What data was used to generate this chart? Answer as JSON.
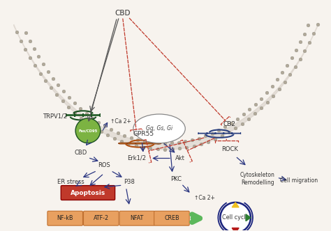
{
  "bg_color": "#f7f3ee",
  "arrow_dark": "#2a3580",
  "arrow_red": "#c0392b",
  "arrow_gray": "#555555",
  "receptor_gpr55_color": "#d4832a",
  "receptor_cb2_color": "#4a6ea8",
  "receptor_trpv_color": "#3a8a3a",
  "fas_color": "#7cb342",
  "apoptosis_color": "#c0392b",
  "nfkb_color": "#e8a060",
  "cell_cycle_outline": "#1a237e",
  "bead_color": "#b0a898",
  "bead_fill": "#d8d0c8",
  "labels": {
    "CBD_top": "CBD",
    "GPR55": "GPR55",
    "CB2": "CB2",
    "TRPV12": "TRPV1/2",
    "CBD_mid": "CBD",
    "ROS": "ROS",
    "ER_stress": "ER stress",
    "Apoptosis": "Apoptosis",
    "Gq": "Gq, Gs, Gi",
    "Ca2_top": "↑Ca 2+",
    "Erk12": "Erk1/2",
    "Akt": "Akt",
    "PKC": "PKC",
    "Ca2_bot": "↑Ca 2+",
    "P38": "P38",
    "ROCK": "ROCK",
    "Cytoskeleton": "Cytoskeleton\nRemodelling",
    "Cell_migration": "Cell migration",
    "NF_kB": "NF-kB",
    "ATF2": "ATF-2",
    "NFAT": "NFAT",
    "CREB": "CREB",
    "Cell_cycle": "Cell cycle",
    "FasCD95": "Fas/CD95"
  }
}
